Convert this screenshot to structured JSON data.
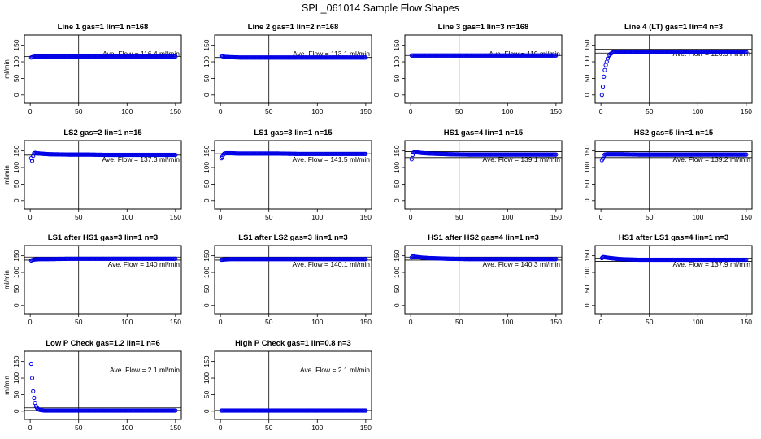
{
  "figure": {
    "title": "SPL_061014  Sample Flow Shapes"
  },
  "chart_data": [
    {
      "type": "scatter",
      "title": "Line 1 gas=1 lin=1 n=168",
      "ylabel": "ml/min",
      "xlim": [
        0,
        150
      ],
      "ylim": [
        0,
        150
      ],
      "xticks": [
        "0",
        "50",
        "100",
        "150"
      ],
      "yticks": [
        "0",
        "50",
        "100",
        "150"
      ],
      "annotation": "Ave. Flow =  116.4  ml/min",
      "mean": 116.4,
      "hlines": [
        116.4
      ],
      "vline": 50,
      "x": [
        1,
        2,
        3,
        5,
        10,
        20,
        40,
        60,
        80,
        100,
        120,
        140,
        150
      ],
      "y": [
        113,
        114,
        115,
        116,
        116,
        116,
        116,
        116,
        116,
        116,
        116,
        116,
        116
      ]
    },
    {
      "type": "scatter",
      "title": "Line 2 gas=1 lin=2 n=168",
      "ylabel": "ml/min",
      "xlim": [
        0,
        150
      ],
      "ylim": [
        0,
        150
      ],
      "xticks": [
        "0",
        "50",
        "100",
        "150"
      ],
      "yticks": [
        "0",
        "50",
        "100",
        "150"
      ],
      "annotation": "Ave. Flow =  113.1  ml/min",
      "mean": 113.1,
      "hlines": [
        113.1
      ],
      "vline": 50,
      "x": [
        1,
        2,
        3,
        5,
        10,
        20,
        40,
        60,
        80,
        100,
        120,
        140,
        150
      ],
      "y": [
        118,
        117,
        116,
        115,
        114,
        113,
        113,
        113,
        113,
        113,
        113,
        113,
        113
      ]
    },
    {
      "type": "scatter",
      "title": "Line 3 gas=1 lin=3 n=168",
      "ylabel": "ml/min",
      "xlim": [
        0,
        150
      ],
      "ylim": [
        0,
        150
      ],
      "xticks": [
        "0",
        "50",
        "100",
        "150"
      ],
      "yticks": [
        "0",
        "50",
        "100",
        "150"
      ],
      "annotation": "Ave. Flow =  119  ml/min",
      "mean": 119,
      "hlines": [
        119
      ],
      "vline": 50,
      "x": [
        1,
        2,
        3,
        5,
        10,
        20,
        40,
        60,
        80,
        100,
        120,
        140,
        150
      ],
      "y": [
        119,
        119,
        119,
        119,
        119,
        119,
        119,
        119,
        119,
        119,
        119,
        119,
        119
      ]
    },
    {
      "type": "scatter",
      "title": "Line 4 (LT) gas=1 lin=4 n=3",
      "ylabel": "ml/min",
      "xlim": [
        0,
        150
      ],
      "ylim": [
        0,
        150
      ],
      "xticks": [
        "0",
        "50",
        "100",
        "150"
      ],
      "yticks": [
        "0",
        "50",
        "100",
        "150"
      ],
      "annotation": "Ave. Flow =  126.5  ml/min",
      "mean": 126.5,
      "hlines": [
        126.5,
        138
      ],
      "vline": 50,
      "x": [
        1,
        2,
        3,
        4,
        5,
        6,
        7,
        8,
        10,
        12,
        15,
        20,
        30,
        50,
        80,
        110,
        150
      ],
      "y": [
        0,
        25,
        55,
        75,
        90,
        100,
        110,
        118,
        124,
        128,
        130,
        130,
        130,
        130,
        130,
        130,
        130
      ]
    },
    {
      "type": "scatter",
      "title": "LS2 gas=2 lin=1 n=15",
      "ylabel": "ml/min",
      "xlim": [
        0,
        150
      ],
      "ylim": [
        0,
        150
      ],
      "xticks": [
        "0",
        "50",
        "100",
        "150"
      ],
      "yticks": [
        "0",
        "50",
        "100",
        "150"
      ],
      "annotation": "Ave. Flow =  137.3  ml/min",
      "mean": 137.3,
      "hlines": [
        137.3
      ],
      "vline": 50,
      "x": [
        1,
        2,
        3,
        4,
        5,
        7,
        10,
        20,
        40,
        60,
        80,
        100,
        120,
        140,
        150
      ],
      "y": [
        128,
        120,
        135,
        143,
        144,
        143,
        142,
        140,
        139,
        139,
        138,
        138,
        138,
        138,
        138
      ]
    },
    {
      "type": "scatter",
      "title": "LS1 gas=3 lin=1 n=15",
      "ylabel": "ml/min",
      "xlim": [
        0,
        150
      ],
      "ylim": [
        0,
        150
      ],
      "xticks": [
        "0",
        "50",
        "100",
        "150"
      ],
      "yticks": [
        "0",
        "50",
        "100",
        "150"
      ],
      "annotation": "Ave. Flow =  141.5  ml/min",
      "mean": 141.5,
      "hlines": [
        141.5
      ],
      "vline": 50,
      "x": [
        1,
        2,
        3,
        4,
        6,
        10,
        20,
        40,
        60,
        80,
        100,
        120,
        140,
        150
      ],
      "y": [
        128,
        133,
        139,
        142,
        143,
        143,
        142,
        142,
        142,
        141,
        141,
        141,
        141,
        141
      ]
    },
    {
      "type": "scatter",
      "title": "HS1 gas=4 lin=1 n=15",
      "ylabel": "ml/min",
      "xlim": [
        0,
        150
      ],
      "ylim": [
        0,
        150
      ],
      "xticks": [
        "0",
        "50",
        "100",
        "150"
      ],
      "yticks": [
        "0",
        "50",
        "100",
        "150"
      ],
      "annotation": "Ave. Flow =  139.1  ml/min",
      "mean": 139.1,
      "hlines": [
        130,
        148
      ],
      "vline": 50,
      "x": [
        1,
        2,
        3,
        4,
        6,
        10,
        20,
        40,
        60,
        80,
        100,
        120,
        140,
        150
      ],
      "y": [
        125,
        138,
        145,
        147,
        146,
        144,
        142,
        140,
        139,
        139,
        139,
        139,
        139,
        139
      ]
    },
    {
      "type": "scatter",
      "title": "HS2 gas=5 lin=1 n=15",
      "ylabel": "ml/min",
      "xlim": [
        0,
        150
      ],
      "ylim": [
        0,
        150
      ],
      "xticks": [
        "0",
        "50",
        "100",
        "150"
      ],
      "yticks": [
        "0",
        "50",
        "100",
        "150"
      ],
      "annotation": "Ave. Flow =  139.2  ml/min",
      "mean": 139.2,
      "hlines": [
        130,
        148
      ],
      "vline": 50,
      "x": [
        1,
        2,
        3,
        4,
        6,
        10,
        20,
        40,
        60,
        80,
        100,
        120,
        140,
        150
      ],
      "y": [
        122,
        127,
        135,
        139,
        140,
        140,
        140,
        139,
        139,
        139,
        139,
        139,
        139,
        139
      ]
    },
    {
      "type": "scatter",
      "title": "LS1 after HS1 gas=3 lin=1 n=3",
      "ylabel": "ml/min",
      "xlim": [
        0,
        150
      ],
      "ylim": [
        0,
        150
      ],
      "xticks": [
        "0",
        "50",
        "100",
        "150"
      ],
      "yticks": [
        "0",
        "50",
        "100",
        "150"
      ],
      "annotation": "Ave. Flow =  140  ml/min",
      "mean": 140,
      "hlines": [
        137,
        146
      ],
      "vline": 50,
      "x": [
        1,
        2,
        3,
        5,
        10,
        20,
        40,
        60,
        80,
        100,
        120,
        140,
        150
      ],
      "y": [
        136,
        137,
        138,
        139,
        140,
        140,
        141,
        141,
        141,
        141,
        141,
        141,
        141
      ]
    },
    {
      "type": "scatter",
      "title": "LS1 after LS2 gas=3 lin=1 n=3",
      "ylabel": "ml/min",
      "xlim": [
        0,
        150
      ],
      "ylim": [
        0,
        150
      ],
      "xticks": [
        "0",
        "50",
        "100",
        "150"
      ],
      "yticks": [
        "0",
        "50",
        "100",
        "150"
      ],
      "annotation": "Ave. Flow =  140.1  ml/min",
      "mean": 140.1,
      "hlines": [
        137,
        146
      ],
      "vline": 50,
      "x": [
        1,
        2,
        3,
        5,
        10,
        20,
        40,
        60,
        80,
        100,
        120,
        140,
        150
      ],
      "y": [
        138,
        138,
        139,
        139,
        140,
        140,
        140,
        140,
        140,
        140,
        140,
        140,
        140
      ]
    },
    {
      "type": "scatter",
      "title": "HS1 after HS2 gas=4 lin=1 n=3",
      "ylabel": "ml/min",
      "xlim": [
        0,
        150
      ],
      "ylim": [
        0,
        150
      ],
      "xticks": [
        "0",
        "50",
        "100",
        "150"
      ],
      "yticks": [
        "0",
        "50",
        "100",
        "150"
      ],
      "annotation": "Ave. Flow =  140.3  ml/min",
      "mean": 140.3,
      "hlines": [
        137,
        146
      ],
      "vline": 50,
      "x": [
        1,
        2,
        3,
        5,
        10,
        20,
        40,
        60,
        80,
        100,
        120,
        140,
        150
      ],
      "y": [
        145,
        148,
        148,
        147,
        145,
        143,
        141,
        140,
        140,
        140,
        140,
        140,
        140
      ]
    },
    {
      "type": "scatter",
      "title": "HS1 after LS1 gas=4 lin=1 n=3",
      "ylabel": "ml/min",
      "xlim": [
        0,
        150
      ],
      "ylim": [
        0,
        150
      ],
      "xticks": [
        "0",
        "50",
        "100",
        "150"
      ],
      "yticks": [
        "0",
        "50",
        "100",
        "150"
      ],
      "annotation": "Ave. Flow =  137.9  ml/min",
      "mean": 137.9,
      "hlines": [
        133,
        143
      ],
      "vline": 50,
      "x": [
        1,
        2,
        3,
        5,
        10,
        20,
        40,
        60,
        80,
        100,
        120,
        140,
        150
      ],
      "y": [
        143,
        146,
        146,
        145,
        143,
        140,
        138,
        138,
        138,
        138,
        138,
        138,
        138
      ]
    },
    {
      "type": "scatter",
      "title": "Low P Check gas=1.2 lin=1 n=6",
      "ylabel": "ml/min",
      "xlim": [
        0,
        150
      ],
      "ylim": [
        0,
        150
      ],
      "xticks": [
        "0",
        "50",
        "100",
        "150"
      ],
      "yticks": [
        "0",
        "50",
        "100",
        "150"
      ],
      "annotation": "Ave. Flow =  2.1  ml/min",
      "mean": 2.1,
      "hlines": [
        2.1,
        10
      ],
      "vline": 50,
      "x": [
        1,
        2,
        3,
        4,
        5,
        6,
        7,
        8,
        10,
        12,
        15,
        20,
        30,
        50,
        80,
        110,
        150
      ],
      "y": [
        143,
        100,
        60,
        40,
        25,
        15,
        10,
        6,
        4,
        3,
        2,
        2,
        2,
        2,
        2,
        2,
        2
      ]
    },
    {
      "type": "scatter",
      "title": "High P Check gas=1 lin=0.8 n=3",
      "ylabel": "ml/min",
      "xlim": [
        0,
        150
      ],
      "ylim": [
        0,
        150
      ],
      "xticks": [
        "0",
        "50",
        "100",
        "150"
      ],
      "yticks": [
        "0",
        "50",
        "100",
        "150"
      ],
      "annotation": "Ave. Flow =  2.1  ml/min",
      "mean": 2.1,
      "hlines": [
        2.1
      ],
      "vline": 50,
      "x": [
        1,
        2,
        3,
        5,
        10,
        20,
        40,
        60,
        80,
        100,
        120,
        140,
        150
      ],
      "y": [
        2,
        2,
        2,
        2,
        2,
        2,
        2,
        2,
        2,
        2,
        2,
        2,
        2
      ]
    }
  ]
}
